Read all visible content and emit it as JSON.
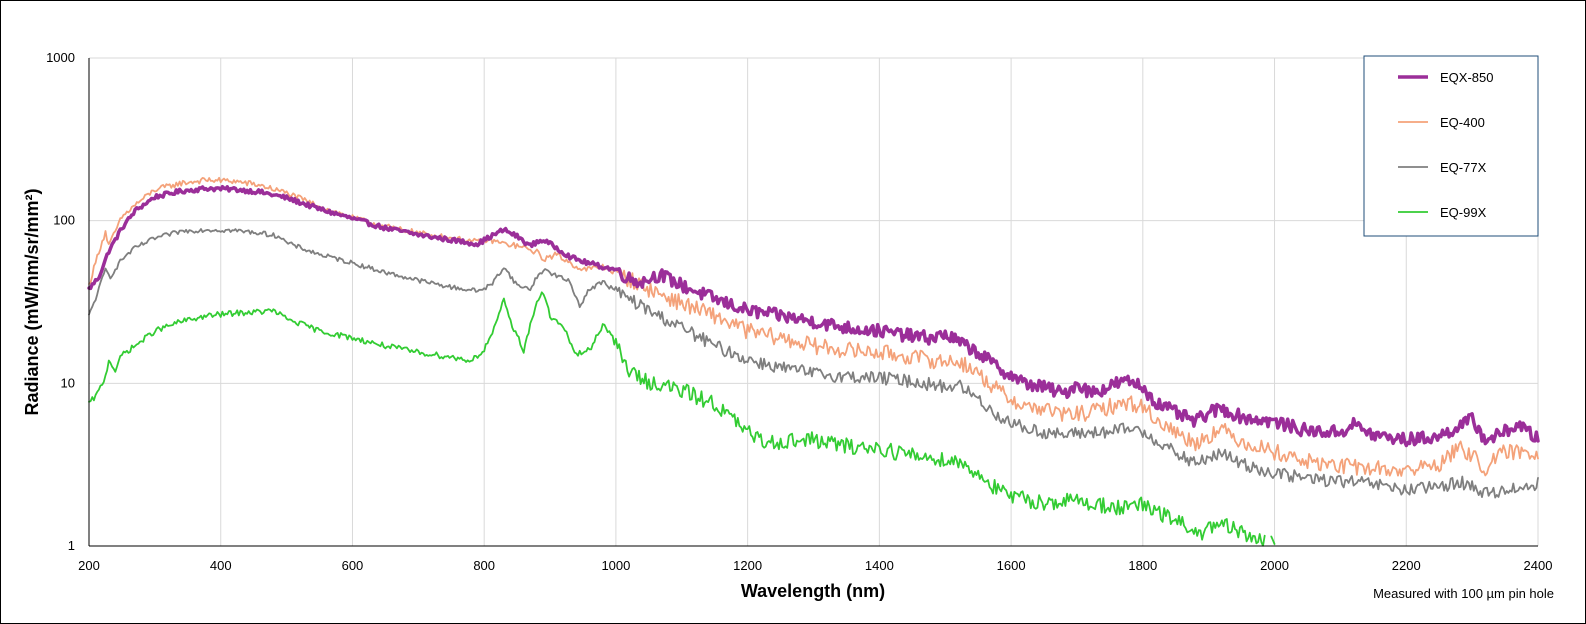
{
  "chart_data": {
    "type": "line",
    "title": "",
    "xlabel": "Wavelength (nm)",
    "ylabel": "Radiance (mW/nm/sr/mm²)",
    "xlim": [
      200,
      2400
    ],
    "ylim": [
      1,
      1000
    ],
    "yscale": "log",
    "x_ticks": [
      200,
      400,
      600,
      800,
      1000,
      1200,
      1400,
      1600,
      1800,
      2000,
      2200,
      2400
    ],
    "x_tick_labels": [
      "200",
      "400",
      "600",
      "800",
      "1000",
      "1200",
      "1400",
      "1600",
      "1800",
      "2000",
      "2200",
      "2400"
    ],
    "y_ticks": [
      1,
      10,
      100,
      1000
    ],
    "y_tick_labels": [
      "1",
      "10",
      "100",
      "1000"
    ],
    "grid": true,
    "legend_position": "top-right",
    "note": "Measured with 100 µm pin hole",
    "series": [
      {
        "name": "EQX-850",
        "color": "#9b2e99",
        "width": 3.5,
        "noise": 0.04,
        "x": [
          200,
          215,
          230,
          250,
          270,
          300,
          340,
          380,
          420,
          460,
          500,
          550,
          600,
          650,
          700,
          750,
          790,
          810,
          830,
          850,
          870,
          880,
          890,
          910,
          930,
          950,
          980,
          1000,
          1020,
          1040,
          1060,
          1070,
          1100,
          1150,
          1200,
          1250,
          1300,
          1350,
          1400,
          1450,
          1480,
          1500,
          1520,
          1550,
          1580,
          1620,
          1650,
          1680,
          1700,
          1720,
          1740,
          1760,
          1780,
          1800,
          1820,
          1850,
          1880,
          1900,
          1920,
          1950,
          2000,
          2050,
          2100,
          2120,
          2150,
          2200,
          2250,
          2270,
          2300,
          2320,
          2340,
          2370,
          2400
        ],
        "y": [
          38,
          45,
          65,
          90,
          115,
          140,
          152,
          158,
          156,
          150,
          138,
          118,
          103,
          90,
          82,
          76,
          72,
          80,
          88,
          80,
          70,
          74,
          76,
          68,
          60,
          56,
          52,
          50,
          44,
          42,
          46,
          46,
          40,
          33,
          28,
          26,
          24,
          22,
          21,
          19.5,
          19,
          20,
          18,
          15.5,
          12.5,
          10,
          9.5,
          8.6,
          10,
          8.8,
          9.2,
          10,
          10.3,
          9.5,
          7.6,
          6.6,
          5.8,
          6.6,
          7.0,
          6.2,
          5.8,
          5.1,
          5.0,
          5.6,
          4.8,
          4.5,
          4.7,
          5.2,
          6.0,
          4.5,
          4.8,
          5.6,
          4.5
        ]
      },
      {
        "name": "EQ-400",
        "color": "#f4a27a",
        "width": 1.8,
        "noise": 0.05,
        "x": [
          200,
          215,
          225,
          230,
          250,
          270,
          300,
          340,
          380,
          420,
          460,
          500,
          550,
          600,
          650,
          700,
          750,
          790,
          810,
          830,
          850,
          870,
          880,
          890,
          910,
          930,
          950,
          980,
          1000,
          1050,
          1100,
          1150,
          1200,
          1250,
          1300,
          1350,
          1400,
          1450,
          1500,
          1520,
          1550,
          1580,
          1620,
          1650,
          1680,
          1720,
          1750,
          1780,
          1800,
          1820,
          1850,
          1880,
          1900,
          1920,
          1950,
          2000,
          2050,
          2100,
          2150,
          2200,
          2250,
          2280,
          2300,
          2320,
          2350,
          2400
        ],
        "y": [
          40,
          65,
          85,
          70,
          105,
          125,
          155,
          170,
          178,
          175,
          165,
          148,
          122,
          104,
          92,
          84,
          78,
          74,
          76,
          72,
          70,
          66,
          64,
          58,
          62,
          55,
          50,
          52,
          48,
          38,
          31,
          26,
          21,
          19,
          17,
          16,
          15.5,
          14.5,
          13.5,
          13.8,
          11.5,
          9.0,
          7.2,
          7.0,
          6.4,
          6.6,
          7.2,
          7.6,
          7.2,
          6.0,
          5.0,
          4.3,
          4.8,
          5.2,
          4.4,
          3.8,
          3.3,
          3.1,
          3.0,
          2.9,
          3.2,
          4.0,
          3.6,
          3.0,
          3.8,
          3.7
        ]
      },
      {
        "name": "EQ-77X",
        "color": "#7f7f7f",
        "width": 1.8,
        "noise": 0.04,
        "x": [
          200,
          212,
          225,
          232,
          250,
          270,
          300,
          340,
          380,
          420,
          460,
          490,
          500,
          550,
          600,
          650,
          700,
          750,
          790,
          810,
          830,
          850,
          870,
          880,
          890,
          910,
          930,
          945,
          960,
          980,
          1000,
          1050,
          1100,
          1150,
          1200,
          1250,
          1300,
          1350,
          1400,
          1450,
          1500,
          1520,
          1550,
          1580,
          1620,
          1650,
          1680,
          1720,
          1750,
          1780,
          1800,
          1820,
          1850,
          1880,
          1900,
          1920,
          1950,
          2000,
          2050,
          2100,
          2150,
          2200,
          2250,
          2280,
          2300,
          2320,
          2350,
          2400
        ],
        "y": [
          26,
          35,
          50,
          45,
          58,
          68,
          78,
          86,
          88,
          87,
          84,
          80,
          73,
          62,
          55,
          48,
          43,
          39,
          37,
          40,
          52,
          40,
          38,
          45,
          50,
          46,
          42,
          30,
          38,
          42,
          37,
          28,
          22,
          17,
          14,
          12.5,
          11.5,
          11,
          10.8,
          10.3,
          9.5,
          9.8,
          8.0,
          6.3,
          5.3,
          5.0,
          4.8,
          5.0,
          5.0,
          5.3,
          5.0,
          4.5,
          3.7,
          3.2,
          3.5,
          3.7,
          3.2,
          2.8,
          2.6,
          2.5,
          2.4,
          2.2,
          2.3,
          2.5,
          2.3,
          2.1,
          2.2,
          2.4
        ]
      },
      {
        "name": "EQ-99X",
        "color": "#33cc33",
        "width": 1.8,
        "noise": 0.05,
        "x": [
          200,
          212,
          225,
          230,
          240,
          250,
          270,
          300,
          340,
          380,
          420,
          460,
          480,
          500,
          550,
          600,
          650,
          700,
          750,
          780,
          800,
          820,
          830,
          840,
          860,
          880,
          890,
          900,
          920,
          940,
          960,
          980,
          990,
          1000,
          1020,
          1040,
          1060,
          1080,
          1100,
          1150,
          1200,
          1220,
          1250,
          1300,
          1350,
          1400,
          1450,
          1500,
          1520,
          1550,
          1580,
          1600,
          1650,
          1700,
          1750,
          1780,
          1800,
          1820,
          1850,
          1880,
          1900,
          1920,
          1950,
          1990,
          2000
        ],
        "y": [
          7.5,
          8.5,
          11,
          14,
          12,
          15,
          17,
          21,
          24,
          26,
          27,
          27.5,
          28,
          25,
          21,
          19,
          17,
          15.5,
          14.5,
          13.8,
          16,
          24,
          33,
          24,
          16,
          32,
          36,
          26,
          22,
          15,
          16,
          23,
          21,
          17,
          12,
          10.5,
          10,
          9.5,
          9,
          7.5,
          5.0,
          4.4,
          4.4,
          4.5,
          4.1,
          4.0,
          3.6,
          3.4,
          3.3,
          2.8,
          2.2,
          2.0,
          1.85,
          1.9,
          1.75,
          1.7,
          1.8,
          1.6,
          1.45,
          1.2,
          1.25,
          1.35,
          1.2,
          1.05,
          1.0
        ]
      }
    ]
  }
}
